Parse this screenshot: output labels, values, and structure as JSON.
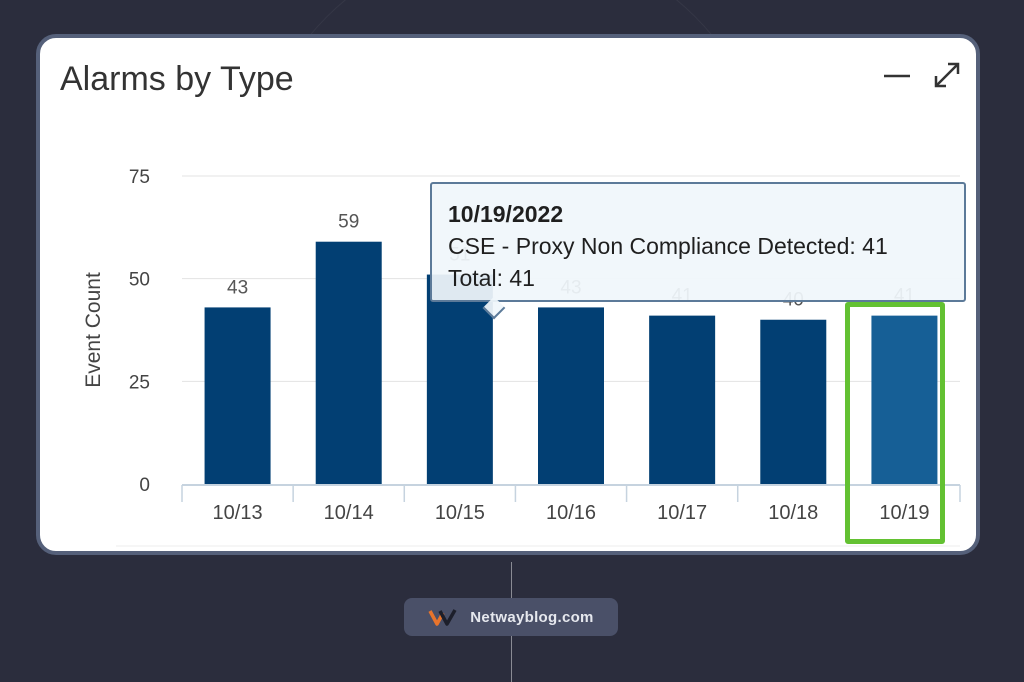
{
  "card": {
    "title": "Alarms by Type",
    "minimize_icon": "minimize-icon",
    "expand_icon": "expand-icon"
  },
  "chart_data": {
    "type": "bar",
    "title": "Alarms by Type",
    "xlabel": "",
    "ylabel": "Event Count",
    "ylim": [
      0,
      75
    ],
    "yticks": [
      0,
      25,
      50,
      75
    ],
    "grid": true,
    "categories": [
      "10/13",
      "10/14",
      "10/15",
      "10/16",
      "10/17",
      "10/18",
      "10/19"
    ],
    "values": [
      43,
      59,
      51,
      43,
      41,
      40,
      41
    ],
    "data_labels": [
      "43",
      "59",
      "51",
      "43",
      "41",
      "40",
      "41"
    ],
    "bar_color": "#023f73",
    "highlight_bar_color": "#165f96",
    "highlighted_category": "10/19"
  },
  "tooltip": {
    "date": "10/19/2022",
    "series_line": "CSE - Proxy Non Compliance Detected: 41",
    "total_line": "Total: 41"
  },
  "highlight": {
    "color": "#63c132"
  },
  "footer": {
    "text": "Netwayblog.com",
    "logo_icon": "netwayblog-logo-icon"
  }
}
